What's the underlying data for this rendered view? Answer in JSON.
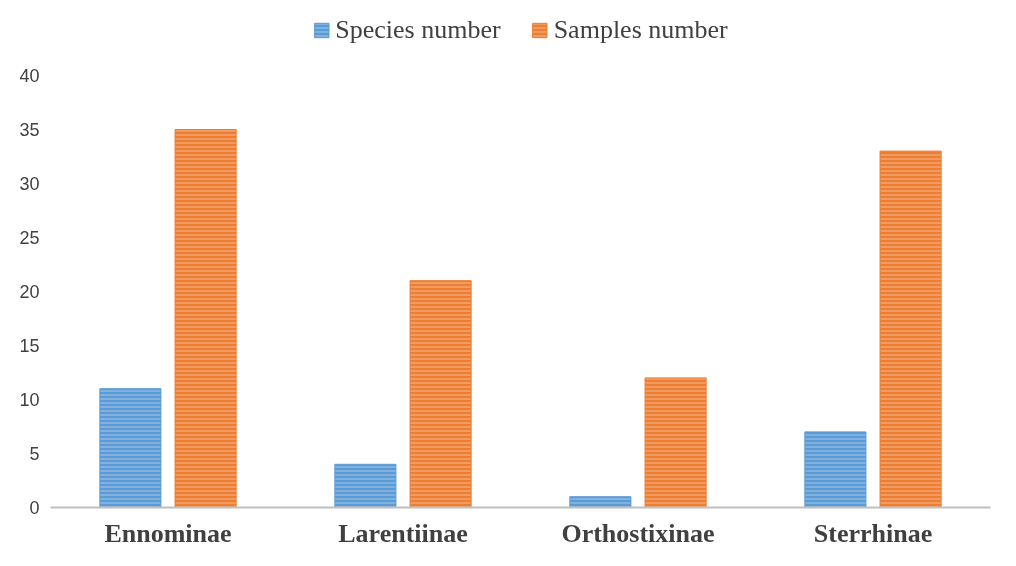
{
  "chart_data": {
    "type": "bar",
    "categories": [
      "Ennominae",
      "Larentiinae",
      "Orthostixinae",
      "Sterrhinae"
    ],
    "series": [
      {
        "name": "Species number",
        "color": "#5b9bd5",
        "values": [
          11,
          4,
          1,
          7
        ]
      },
      {
        "name": "Samples number",
        "color": "#ed7d31",
        "values": [
          35,
          21,
          12,
          33
        ]
      }
    ],
    "ylim": [
      0,
      40
    ],
    "yticks": [
      0,
      5,
      10,
      15,
      20,
      25,
      30,
      35,
      40
    ],
    "grid": false,
    "legend": "top"
  }
}
